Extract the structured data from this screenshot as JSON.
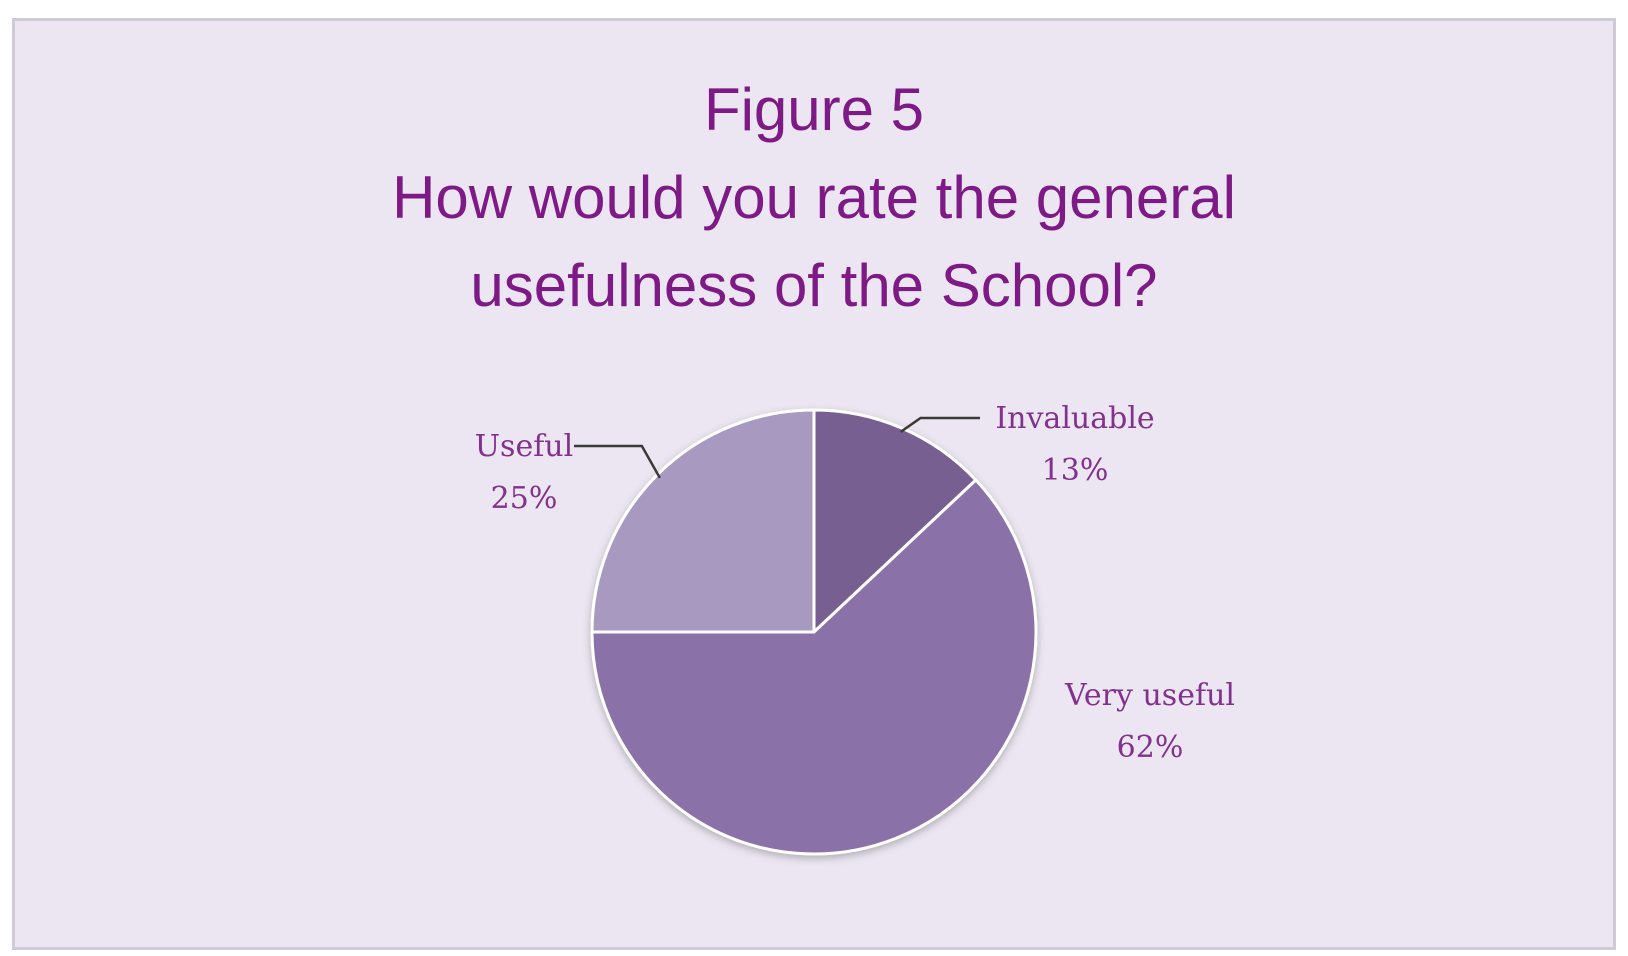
{
  "chart_data": {
    "type": "pie",
    "title_lines": [
      "Figure 5",
      "How would you rate the general",
      "usefulness of the School?"
    ],
    "slices": [
      {
        "label": "Invaluable",
        "value": 13,
        "value_label": "13%",
        "color": "#776091"
      },
      {
        "label": "Very useful",
        "value": 62,
        "value_label": "62%",
        "color": "#8a72a9"
      },
      {
        "label": "Useful",
        "value": 25,
        "value_label": "25%",
        "color": "#a899c0"
      }
    ],
    "start_angle_deg": 0,
    "direction": "clockwise",
    "legend": "none",
    "data_labels": "outside with leader lines"
  },
  "colors": {
    "background": "#ebe6f1",
    "border": "#cfcbd4",
    "title": "#7e1a86",
    "label": "#82318c"
  }
}
